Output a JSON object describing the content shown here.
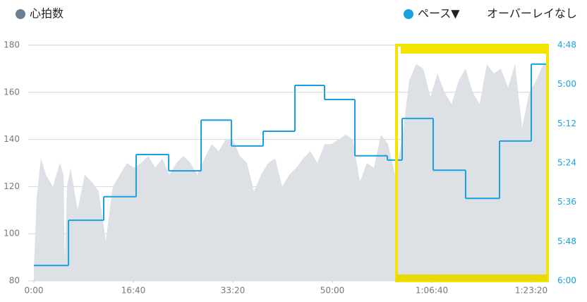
{
  "chart_data": {
    "type": "dual-axis-area-step",
    "legend_menu": "オーバーレイなし",
    "xlim": [
      0,
      5163
    ],
    "xticks": [
      {
        "value": 0,
        "label": "0:00"
      },
      {
        "value": 1000,
        "label": "16:40"
      },
      {
        "value": 2000,
        "label": "33:20"
      },
      {
        "value": 3000,
        "label": "50:00"
      },
      {
        "value": 4000,
        "label": "1:06:40"
      },
      {
        "value": 5000,
        "label": "1:23:20"
      }
    ],
    "ylim": [
      80,
      180
    ],
    "yticks": [
      80,
      100,
      120,
      140,
      160,
      180
    ],
    "y2lim": [
      360,
      288
    ],
    "y2ticks": [
      {
        "value": 288,
        "label": "4:48"
      },
      {
        "value": 300,
        "label": "5:00"
      },
      {
        "value": 312,
        "label": "5:12"
      },
      {
        "value": 324,
        "label": "5:24"
      },
      {
        "value": 336,
        "label": "5:36"
      },
      {
        "value": 348,
        "label": "5:48"
      },
      {
        "value": 360,
        "label": "6:00"
      }
    ],
    "grid": true,
    "series": [
      {
        "name": "心拍数",
        "kind": "area",
        "color": "#dde0e4",
        "legend_color": "#6b7f92",
        "x": [
          0,
          28,
          71,
          121,
          191,
          262,
          298,
          312,
          333,
          369,
          440,
          511,
          582,
          652,
          723,
          794,
          865,
          936,
          1007,
          1078,
          1149,
          1220,
          1291,
          1362,
          1433,
          1504,
          1574,
          1645,
          1716,
          1787,
          1858,
          1929,
          2000,
          2071,
          2142,
          2213,
          2284,
          2355,
          2426,
          2496,
          2567,
          2638,
          2709,
          2780,
          2851,
          2922,
          2993,
          3064,
          3135,
          3206,
          3277,
          3348,
          3418,
          3489,
          3560,
          3631,
          3702,
          3773,
          3844,
          3915,
          3986,
          4057,
          4128,
          4199,
          4270,
          4340,
          4411,
          4482,
          4553,
          4624,
          4695,
          4766,
          4837,
          4908,
          4979,
          5050,
          5121,
          5163
        ],
        "values": [
          85,
          115,
          132,
          125,
          120,
          130,
          125,
          88,
          120,
          128,
          110,
          125,
          122,
          118,
          97,
          120,
          125,
          130,
          128,
          130,
          133,
          128,
          132,
          125,
          130,
          133,
          130,
          125,
          132,
          138,
          135,
          140,
          140,
          133,
          130,
          118,
          125,
          130,
          132,
          120,
          125,
          128,
          132,
          135,
          130,
          138,
          138,
          140,
          142,
          140,
          122,
          130,
          128,
          142,
          138,
          125,
          140,
          165,
          172,
          170,
          158,
          168,
          160,
          155,
          165,
          170,
          160,
          155,
          172,
          168,
          170,
          162,
          172,
          145,
          160,
          165,
          172,
          172
        ]
      },
      {
        "name": "ペース▼",
        "kind": "step",
        "axis": "y2",
        "color": "#1aa0e0",
        "x": [
          0,
          348,
          702,
          1028,
          1355,
          1681,
          1986,
          2305,
          2624,
          2922,
          3227,
          3553,
          3702,
          4014,
          4340,
          4681,
          5000
        ],
        "values": [
          355.3,
          341.5,
          334.3,
          321.4,
          326.4,
          310.9,
          318.8,
          314.3,
          300.3,
          304.6,
          321.8,
          323.1,
          310.4,
          326.2,
          334.8,
          317.3,
          293.8
        ]
      }
    ]
  }
}
